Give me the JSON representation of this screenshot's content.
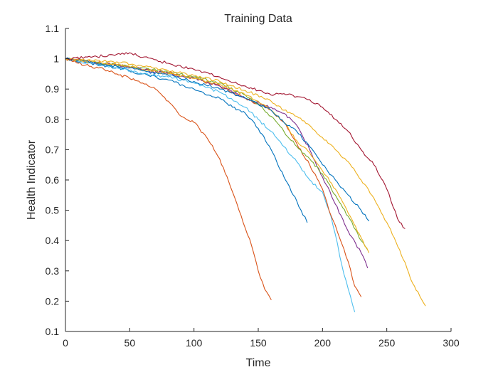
{
  "chart_data": {
    "type": "line",
    "title": "Training Data",
    "xlabel": "Time",
    "ylabel": "Health Indicator",
    "xlim": [
      0,
      300
    ],
    "ylim": [
      0.1,
      1.1
    ],
    "xticks": [
      "0",
      "50",
      "100",
      "150",
      "200",
      "250",
      "300"
    ],
    "yticks": [
      "0.1",
      "0.2",
      "0.3",
      "0.4",
      "0.5",
      "0.6",
      "0.7",
      "0.8",
      "0.9",
      "1",
      "1.1"
    ],
    "grid": false,
    "series": [
      {
        "color": "#D95319",
        "x": [
          0,
          10,
          20,
          30,
          40,
          50,
          60,
          70,
          80,
          90,
          100,
          110,
          120,
          130,
          135,
          140,
          145,
          150,
          155,
          160
        ],
        "y": [
          1.0,
          0.985,
          0.975,
          0.965,
          0.95,
          0.935,
          0.92,
          0.9,
          0.86,
          0.81,
          0.79,
          0.74,
          0.67,
          0.56,
          0.5,
          0.44,
          0.38,
          0.3,
          0.24,
          0.205
        ]
      },
      {
        "color": "#0072BD",
        "x": [
          0,
          20,
          40,
          60,
          80,
          100,
          110,
          120,
          130,
          140,
          150,
          160,
          170,
          180,
          188
        ],
        "y": [
          1.0,
          0.985,
          0.97,
          0.95,
          0.93,
          0.9,
          0.88,
          0.87,
          0.84,
          0.82,
          0.77,
          0.7,
          0.61,
          0.53,
          0.46
        ]
      },
      {
        "color": "#4DBEEE",
        "x": [
          0,
          20,
          40,
          60,
          80,
          100,
          120,
          140,
          150,
          160,
          170,
          180,
          190,
          200,
          205,
          210,
          215,
          220,
          225
        ],
        "y": [
          1.0,
          0.985,
          0.97,
          0.95,
          0.94,
          0.92,
          0.89,
          0.84,
          0.8,
          0.76,
          0.71,
          0.66,
          0.6,
          0.56,
          0.5,
          0.42,
          0.32,
          0.24,
          0.165
        ]
      },
      {
        "color": "#D95319",
        "x": [
          0,
          20,
          40,
          60,
          80,
          100,
          120,
          140,
          160,
          170,
          180,
          190,
          200,
          205,
          210,
          215,
          220,
          225,
          230
        ],
        "y": [
          1.0,
          0.99,
          0.98,
          0.965,
          0.955,
          0.935,
          0.91,
          0.87,
          0.83,
          0.79,
          0.72,
          0.65,
          0.57,
          0.5,
          0.45,
          0.39,
          0.33,
          0.25,
          0.215
        ]
      },
      {
        "color": "#7E2F8E",
        "x": [
          0,
          20,
          40,
          60,
          80,
          100,
          120,
          140,
          160,
          170,
          180,
          190,
          200,
          210,
          220,
          230,
          235
        ],
        "y": [
          1.0,
          0.99,
          0.98,
          0.965,
          0.95,
          0.935,
          0.91,
          0.87,
          0.84,
          0.82,
          0.78,
          0.7,
          0.61,
          0.52,
          0.43,
          0.36,
          0.31
        ]
      },
      {
        "color": "#77AC30",
        "x": [
          0,
          20,
          40,
          60,
          80,
          100,
          120,
          140,
          150,
          160,
          170,
          180,
          190,
          200,
          210,
          220,
          230,
          235
        ],
        "y": [
          1.0,
          0.99,
          0.98,
          0.97,
          0.955,
          0.94,
          0.92,
          0.88,
          0.85,
          0.81,
          0.76,
          0.71,
          0.67,
          0.62,
          0.55,
          0.48,
          0.4,
          0.37
        ]
      },
      {
        "color": "#EDB120",
        "x": [
          0,
          20,
          40,
          60,
          80,
          100,
          120,
          140,
          150,
          160,
          170,
          180,
          190,
          200,
          210,
          220,
          230,
          236
        ],
        "y": [
          1.0,
          0.99,
          0.98,
          0.965,
          0.95,
          0.935,
          0.915,
          0.88,
          0.86,
          0.83,
          0.79,
          0.73,
          0.69,
          0.63,
          0.57,
          0.49,
          0.41,
          0.36
        ]
      },
      {
        "color": "#0072BD",
        "x": [
          0,
          20,
          40,
          60,
          80,
          100,
          120,
          140,
          160,
          170,
          180,
          190,
          200,
          210,
          220,
          230,
          236
        ],
        "y": [
          1.0,
          0.99,
          0.975,
          0.96,
          0.945,
          0.925,
          0.9,
          0.87,
          0.83,
          0.79,
          0.76,
          0.71,
          0.65,
          0.6,
          0.55,
          0.5,
          0.465
        ]
      },
      {
        "color": "#EDB120",
        "x": [
          0,
          20,
          40,
          60,
          80,
          100,
          120,
          140,
          160,
          170,
          180,
          190,
          200,
          210,
          220,
          230,
          240,
          250,
          260,
          270,
          280
        ],
        "y": [
          1.0,
          0.995,
          0.99,
          0.975,
          0.96,
          0.945,
          0.925,
          0.895,
          0.86,
          0.83,
          0.81,
          0.78,
          0.74,
          0.7,
          0.66,
          0.6,
          0.54,
          0.46,
          0.37,
          0.26,
          0.185
        ]
      },
      {
        "color": "#A2142F",
        "x": [
          0,
          20,
          40,
          50,
          60,
          80,
          100,
          120,
          140,
          150,
          160,
          170,
          180,
          190,
          200,
          210,
          220,
          230,
          240,
          250,
          255,
          260,
          264
        ],
        "y": [
          1.0,
          1.005,
          1.015,
          1.02,
          1.005,
          0.985,
          0.965,
          0.94,
          0.91,
          0.895,
          0.88,
          0.885,
          0.875,
          0.865,
          0.84,
          0.8,
          0.76,
          0.7,
          0.65,
          0.57,
          0.51,
          0.46,
          0.44
        ]
      }
    ]
  }
}
